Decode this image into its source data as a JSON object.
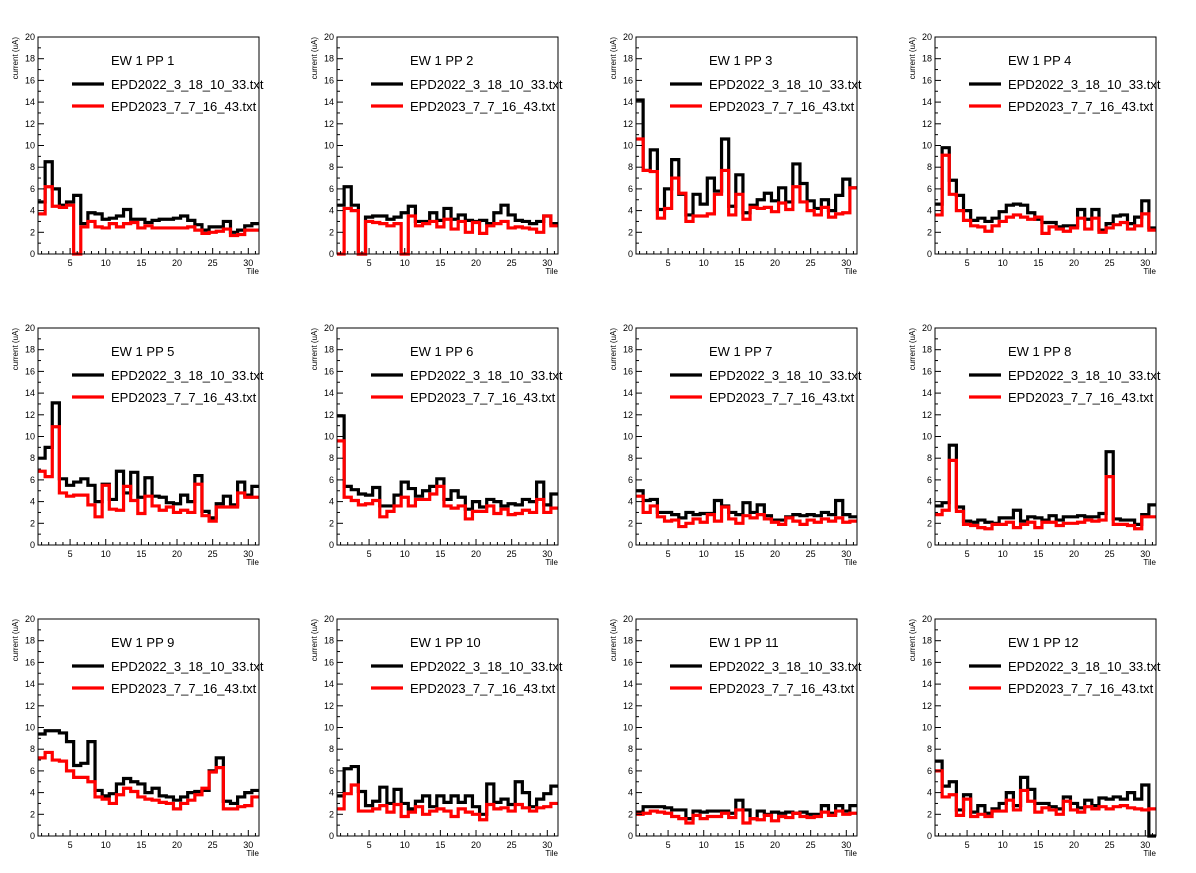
{
  "chart_data": [
    {
      "type": "line",
      "title": "EW 1 PP 1",
      "xlabel": "Tile",
      "ylabel": "current (uA)",
      "xlim": [
        0.5,
        31.5
      ],
      "ylim": [
        0,
        20
      ],
      "series": [
        {
          "name": "EPD2022_3_18_10_33.txt",
          "color": "#000000",
          "values": [
            4.8,
            8.5,
            6.0,
            4.5,
            4.8,
            5.4,
            2.8,
            3.8,
            3.7,
            3.2,
            3.3,
            3.5,
            4.1,
            3.2,
            3.2,
            2.9,
            3.1,
            3.2,
            3.2,
            3.3,
            3.5,
            3.1,
            2.7,
            2.2,
            2.5,
            2.5,
            3.0,
            2.0,
            2.2,
            2.6,
            2.8
          ]
        },
        {
          "name": "EPD2023_7_7_16_43.txt",
          "color": "#ff0000",
          "values": [
            3.7,
            6.2,
            4.4,
            4.3,
            4.5,
            0.0,
            2.5,
            3.0,
            2.5,
            2.4,
            2.8,
            2.5,
            2.8,
            2.9,
            2.4,
            2.6,
            2.4,
            2.4,
            2.4,
            2.4,
            2.4,
            2.5,
            2.2,
            1.9,
            2.0,
            2.1,
            2.3,
            1.7,
            1.8,
            2.2,
            2.2
          ]
        }
      ]
    },
    {
      "type": "line",
      "title": "EW 1 PP 2",
      "xlabel": "Tile",
      "ylabel": "current (uA)",
      "xlim": [
        0.5,
        31.5
      ],
      "ylim": [
        0,
        20
      ],
      "series": [
        {
          "name": "EPD2022_3_18_10_33.txt",
          "color": "#000000",
          "values": [
            4.5,
            6.2,
            4.5,
            0.0,
            3.4,
            3.5,
            3.5,
            3.2,
            3.4,
            3.8,
            4.4,
            3.0,
            3.0,
            3.8,
            3.1,
            4.2,
            3.2,
            3.6,
            3.1,
            3.0,
            3.1,
            2.8,
            3.8,
            4.5,
            3.6,
            3.1,
            3.0,
            2.8,
            3.0,
            3.5,
            2.8
          ]
        },
        {
          "name": "EPD2023_7_7_16_43.txt",
          "color": "#ff0000",
          "values": [
            0.0,
            4.2,
            4.0,
            0.0,
            3.0,
            2.9,
            2.8,
            2.6,
            2.8,
            0.0,
            3.5,
            2.6,
            2.8,
            3.0,
            2.5,
            3.2,
            2.3,
            3.0,
            2.0,
            2.9,
            1.9,
            2.6,
            2.8,
            3.0,
            2.4,
            2.5,
            2.4,
            2.3,
            2.0,
            3.5,
            2.6
          ]
        }
      ]
    },
    {
      "type": "line",
      "title": "EW 1 PP 3",
      "xlabel": "Tile",
      "ylabel": "current (uA)",
      "xlim": [
        0.5,
        31.5
      ],
      "ylim": [
        0,
        20
      ],
      "series": [
        {
          "name": "EPD2022_3_18_10_33.txt",
          "color": "#000000",
          "values": [
            14.2,
            7.7,
            9.6,
            4.1,
            6.0,
            8.7,
            5.5,
            3.6,
            5.5,
            4.6,
            7.0,
            5.8,
            10.6,
            4.4,
            7.3,
            3.8,
            4.5,
            5.0,
            5.6,
            4.9,
            6.1,
            4.8,
            8.3,
            6.5,
            4.9,
            4.2,
            5.0,
            4.0,
            5.4,
            6.9,
            6.1
          ]
        },
        {
          "name": "EPD2023_7_7_16_43.txt",
          "color": "#ff0000",
          "values": [
            10.6,
            7.7,
            7.6,
            3.3,
            4.2,
            7.0,
            5.6,
            3.0,
            3.5,
            3.5,
            3.7,
            5.5,
            7.7,
            3.6,
            5.5,
            3.2,
            4.3,
            4.2,
            4.3,
            3.9,
            4.7,
            4.1,
            6.2,
            4.8,
            4.0,
            3.6,
            4.3,
            3.4,
            3.7,
            3.8,
            6.1
          ]
        }
      ]
    },
    {
      "type": "line",
      "title": "EW 1 PP 4",
      "xlabel": "Tile",
      "ylabel": "current (uA)",
      "xlim": [
        0.5,
        31.5
      ],
      "ylim": [
        0,
        20
      ],
      "series": [
        {
          "name": "EPD2022_3_18_10_33.txt",
          "color": "#000000",
          "values": [
            4.6,
            9.8,
            6.8,
            5.4,
            4.0,
            3.1,
            3.3,
            3.0,
            3.3,
            3.9,
            4.5,
            4.6,
            4.5,
            3.8,
            3.2,
            2.9,
            2.9,
            2.5,
            2.6,
            2.6,
            4.1,
            3.2,
            4.1,
            2.2,
            2.8,
            3.5,
            3.6,
            2.8,
            3.4,
            4.9,
            2.4
          ]
        },
        {
          "name": "EPD2023_7_7_16_43.txt",
          "color": "#ff0000",
          "values": [
            3.6,
            9.1,
            5.5,
            4.0,
            3.1,
            2.6,
            2.5,
            2.1,
            2.6,
            3.0,
            3.4,
            3.6,
            3.4,
            3.2,
            3.4,
            1.9,
            2.5,
            2.3,
            2.1,
            2.4,
            3.3,
            2.3,
            3.3,
            2.0,
            2.4,
            2.7,
            2.9,
            2.3,
            2.6,
            3.7,
            2.2
          ]
        }
      ]
    },
    {
      "type": "line",
      "title": "EW 1 PP 5",
      "xlabel": "Tile",
      "ylabel": "current (uA)",
      "xlim": [
        0.5,
        31.5
      ],
      "ylim": [
        0,
        20
      ],
      "series": [
        {
          "name": "EPD2022_3_18_10_33.txt",
          "color": "#000000",
          "values": [
            8.0,
            9.0,
            13.1,
            6.1,
            5.5,
            5.8,
            6.1,
            5.5,
            4.0,
            5.6,
            4.2,
            6.8,
            4.8,
            6.7,
            4.4,
            6.2,
            4.5,
            4.4,
            3.9,
            3.8,
            4.6,
            4.0,
            6.4,
            3.1,
            2.5,
            3.8,
            4.5,
            3.7,
            5.8,
            4.6,
            5.4
          ]
        },
        {
          "name": "EPD2023_7_7_16_43.txt",
          "color": "#ff0000",
          "values": [
            6.8,
            6.3,
            10.9,
            4.8,
            4.5,
            4.6,
            4.6,
            3.7,
            2.6,
            5.5,
            3.3,
            3.2,
            5.4,
            4.1,
            2.9,
            4.5,
            3.6,
            3.2,
            3.5,
            3.0,
            3.2,
            3.0,
            5.6,
            2.7,
            2.2,
            3.5,
            3.5,
            3.5,
            4.8,
            4.4,
            4.4
          ]
        }
      ]
    },
    {
      "type": "line",
      "title": "EW 1 PP 6",
      "xlabel": "Tile",
      "ylabel": "current (uA)",
      "xlim": [
        0.5,
        31.5
      ],
      "ylim": [
        0,
        20
      ],
      "series": [
        {
          "name": "EPD2022_3_18_10_33.txt",
          "color": "#000000",
          "values": [
            11.9,
            5.4,
            5.1,
            4.7,
            4.6,
            5.3,
            3.6,
            3.6,
            4.6,
            5.8,
            5.2,
            4.5,
            5.0,
            5.4,
            6.1,
            4.2,
            5.0,
            4.4,
            3.3,
            4.0,
            3.5,
            4.2,
            4.0,
            3.6,
            3.8,
            3.7,
            4.2,
            4.0,
            5.8,
            3.7,
            4.7
          ]
        },
        {
          "name": "EPD2023_7_7_16_43.txt",
          "color": "#ff0000",
          "values": [
            9.6,
            4.4,
            4.1,
            3.7,
            3.8,
            4.1,
            2.6,
            3.1,
            3.6,
            4.4,
            3.6,
            4.2,
            4.2,
            4.7,
            5.4,
            3.6,
            3.4,
            3.6,
            2.4,
            3.1,
            3.1,
            3.6,
            2.9,
            3.3,
            2.8,
            2.9,
            3.2,
            3.0,
            4.2,
            3.0,
            3.4
          ]
        }
      ]
    },
    {
      "type": "line",
      "title": "EW 1 PP 7",
      "xlabel": "Tile",
      "ylabel": "current (uA)",
      "xlim": [
        0.5,
        31.5
      ],
      "ylim": [
        0,
        20
      ],
      "series": [
        {
          "name": "EPD2022_3_18_10_33.txt",
          "color": "#000000",
          "values": [
            5.0,
            4.1,
            4.2,
            3.0,
            3.0,
            2.8,
            2.5,
            3.0,
            2.8,
            2.9,
            2.9,
            4.1,
            3.6,
            3.0,
            2.8,
            3.9,
            3.0,
            3.7,
            2.7,
            2.3,
            2.3,
            2.6,
            2.8,
            2.7,
            2.8,
            2.7,
            3.0,
            2.8,
            4.1,
            2.8,
            2.6
          ]
        },
        {
          "name": "EPD2023_7_7_16_43.txt",
          "color": "#ff0000",
          "values": [
            4.5,
            3.0,
            3.6,
            2.6,
            2.2,
            2.3,
            1.7,
            2.0,
            2.4,
            2.1,
            2.8,
            2.2,
            3.5,
            2.4,
            2.0,
            2.7,
            2.5,
            2.8,
            2.4,
            2.1,
            1.9,
            2.5,
            2.2,
            1.9,
            2.3,
            2.1,
            2.4,
            2.2,
            2.5,
            2.1,
            2.2
          ]
        }
      ]
    },
    {
      "type": "line",
      "title": "EW 1 PP 8",
      "xlabel": "Tile",
      "ylabel": "current (uA)",
      "xlim": [
        0.5,
        31.5
      ],
      "ylim": [
        0,
        20
      ],
      "series": [
        {
          "name": "EPD2022_3_18_10_33.txt",
          "color": "#000000",
          "values": [
            3.6,
            3.9,
            9.2,
            3.5,
            2.2,
            2.1,
            2.3,
            2.1,
            2.0,
            2.5,
            2.5,
            3.2,
            2.2,
            2.6,
            2.5,
            2.3,
            2.7,
            2.3,
            2.6,
            2.6,
            2.7,
            2.6,
            2.6,
            2.9,
            8.6,
            2.4,
            2.3,
            2.3,
            1.9,
            2.8,
            3.7
          ]
        },
        {
          "name": "EPD2023_7_7_16_43.txt",
          "color": "#ff0000",
          "values": [
            2.8,
            3.2,
            7.8,
            3.1,
            1.9,
            1.8,
            1.6,
            1.5,
            1.9,
            1.9,
            2.1,
            1.6,
            1.9,
            2.1,
            1.6,
            2.1,
            2.1,
            1.8,
            2.0,
            2.0,
            2.1,
            2.3,
            2.2,
            2.3,
            6.3,
            1.9,
            1.9,
            1.8,
            1.5,
            2.6,
            2.6
          ]
        }
      ]
    },
    {
      "type": "line",
      "title": "EW 1 PP 9",
      "xlabel": "Tile",
      "ylabel": "current (uA)",
      "xlim": [
        0.5,
        31.5
      ],
      "ylim": [
        0,
        20
      ],
      "series": [
        {
          "name": "EPD2022_3_18_10_33.txt",
          "color": "#000000",
          "values": [
            9.4,
            9.7,
            9.7,
            9.5,
            8.7,
            6.5,
            6.7,
            8.7,
            4.2,
            3.7,
            3.9,
            4.8,
            5.3,
            5.0,
            4.8,
            4.0,
            4.4,
            3.7,
            3.6,
            3.3,
            3.6,
            4.0,
            4.1,
            4.2,
            6.0,
            7.2,
            3.2,
            3.0,
            3.6,
            4.0,
            4.2
          ]
        },
        {
          "name": "EPD2023_7_7_16_43.txt",
          "color": "#ff0000",
          "values": [
            7.2,
            7.7,
            7.0,
            6.9,
            6.0,
            5.4,
            5.4,
            5.0,
            3.6,
            3.4,
            3.0,
            3.8,
            4.4,
            4.1,
            3.6,
            3.4,
            3.3,
            3.1,
            3.0,
            2.5,
            3.0,
            3.3,
            3.8,
            4.4,
            5.9,
            6.3,
            2.5,
            2.5,
            2.7,
            2.8,
            3.6
          ]
        }
      ]
    },
    {
      "type": "line",
      "title": "EW 1 PP 10",
      "xlabel": "Tile",
      "ylabel": "current (uA)",
      "xlim": [
        0.5,
        31.5
      ],
      "ylim": [
        0,
        20
      ],
      "series": [
        {
          "name": "EPD2022_3_18_10_33.txt",
          "color": "#000000",
          "values": [
            3.7,
            6.2,
            6.4,
            4.1,
            2.8,
            3.2,
            4.5,
            3.0,
            4.3,
            3.0,
            2.5,
            3.2,
            3.7,
            2.7,
            3.7,
            3.1,
            3.7,
            3.1,
            3.7,
            2.7,
            2.0,
            4.8,
            3.1,
            3.4,
            2.9,
            5.0,
            4.0,
            2.7,
            3.4,
            3.9,
            4.6
          ]
        },
        {
          "name": "EPD2023_7_7_16_43.txt",
          "color": "#ff0000",
          "values": [
            2.5,
            3.9,
            4.7,
            2.3,
            2.3,
            2.5,
            2.8,
            2.2,
            2.9,
            1.8,
            2.2,
            2.7,
            2.0,
            2.3,
            2.5,
            2.3,
            1.8,
            2.5,
            2.2,
            2.0,
            1.5,
            2.9,
            2.5,
            2.6,
            2.3,
            2.9,
            2.6,
            2.3,
            2.6,
            2.7,
            3.0
          ]
        }
      ]
    },
    {
      "type": "line",
      "title": "EW 1 PP 11",
      "xlabel": "Tile",
      "ylabel": "current (uA)",
      "xlim": [
        0.5,
        31.5
      ],
      "ylim": [
        0,
        20
      ],
      "series": [
        {
          "name": "EPD2022_3_18_10_33.txt",
          "color": "#000000",
          "values": [
            2.2,
            2.7,
            2.7,
            2.7,
            2.6,
            2.4,
            2.4,
            1.6,
            2.3,
            2.2,
            2.3,
            2.3,
            2.3,
            2.1,
            3.3,
            2.4,
            1.6,
            2.3,
            2.0,
            2.2,
            2.1,
            2.2,
            2.1,
            2.2,
            2.0,
            2.0,
            2.8,
            2.1,
            2.8,
            2.3,
            2.8
          ]
        },
        {
          "name": "EPD2023_7_7_16_43.txt",
          "color": "#ff0000",
          "values": [
            2.0,
            2.1,
            2.3,
            2.2,
            2.1,
            1.8,
            1.6,
            1.2,
            1.9,
            1.6,
            1.8,
            1.8,
            2.1,
            1.7,
            2.4,
            1.2,
            1.6,
            1.5,
            1.9,
            1.4,
            1.8,
            1.7,
            2.1,
            1.8,
            1.7,
            1.8,
            2.2,
            1.9,
            2.3,
            2.0,
            2.1
          ]
        }
      ]
    },
    {
      "type": "line",
      "title": "EW 1 PP 12",
      "xlabel": "Tile",
      "ylabel": "current (uA)",
      "xlim": [
        0.5,
        31.5
      ],
      "ylim": [
        0,
        20
      ],
      "series": [
        {
          "name": "EPD2022_3_18_10_33.txt",
          "color": "#000000",
          "values": [
            6.9,
            4.6,
            5.0,
            2.4,
            3.8,
            2.2,
            2.8,
            2.1,
            2.5,
            3.0,
            4.0,
            2.8,
            5.4,
            4.3,
            3.0,
            3.0,
            2.7,
            2.5,
            3.6,
            3.0,
            2.6,
            3.3,
            2.8,
            3.5,
            3.4,
            3.6,
            3.4,
            4.0,
            3.4,
            4.7,
            0.0
          ]
        },
        {
          "name": "EPD2023_7_7_16_43.txt",
          "color": "#ff0000",
          "values": [
            6.0,
            3.6,
            3.8,
            1.9,
            3.4,
            1.8,
            2.0,
            1.8,
            2.3,
            2.3,
            3.3,
            2.4,
            4.2,
            3.2,
            2.2,
            2.6,
            2.4,
            2.0,
            3.2,
            2.4,
            2.2,
            2.7,
            2.5,
            2.7,
            2.5,
            2.7,
            2.8,
            2.6,
            2.5,
            2.4,
            2.5
          ]
        }
      ]
    }
  ]
}
